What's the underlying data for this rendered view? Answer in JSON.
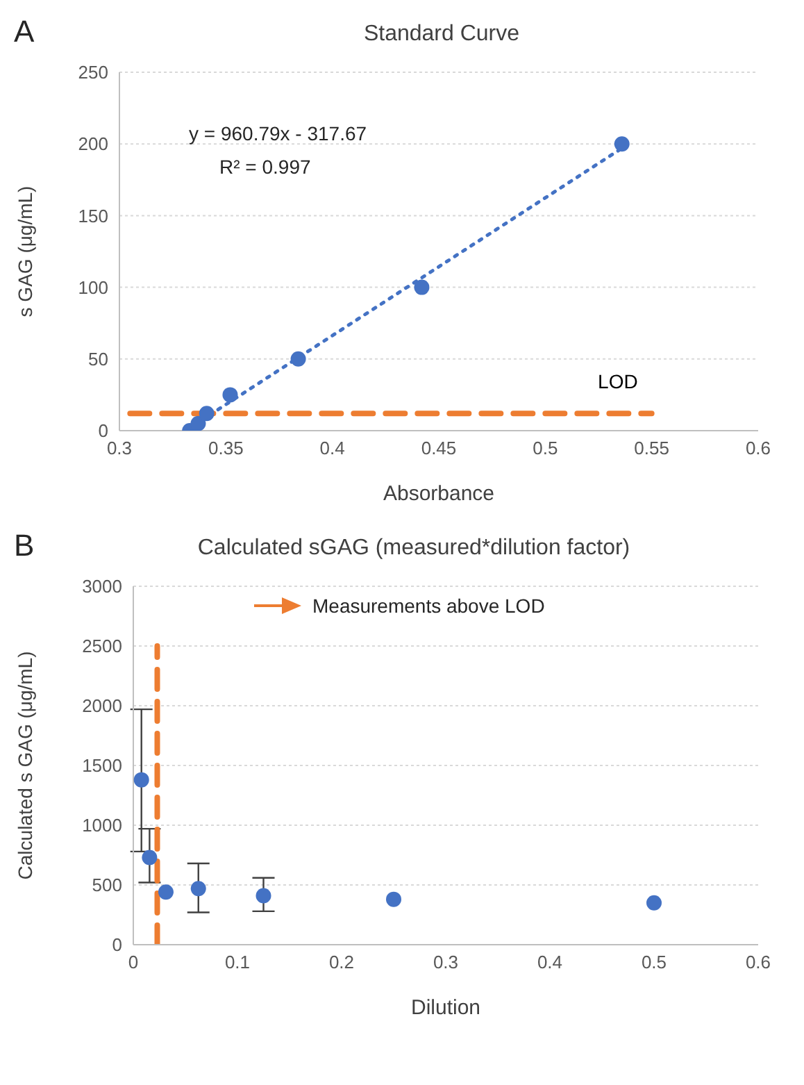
{
  "chart_data": [
    {
      "type": "scatter",
      "title": "Standard Curve",
      "xlabel": "Absorbance",
      "ylabel": "s GAG (μg/mL)",
      "annotations": [
        "A",
        "y = 960.79x - 317.67",
        "R² = 0.997"
      ],
      "xlim": [
        0.3,
        0.6
      ],
      "xticks": [
        0.3,
        0.35,
        0.4,
        0.45,
        0.5,
        0.55,
        0.6
      ],
      "ylim": [
        0,
        250
      ],
      "yticks": [
        0,
        50,
        100,
        150,
        200,
        250
      ],
      "grid": "y",
      "series": [
        {
          "color": "#4472c4",
          "marker": "circle",
          "x": [
            0.333,
            0.337,
            0.341,
            0.352,
            0.384,
            0.442,
            0.536
          ],
          "values": [
            0,
            5,
            12,
            25,
            50,
            100,
            200
          ]
        },
        {
          "type": "line",
          "color": "#4472c4",
          "marker": "none",
          "line_style": "dotted",
          "x": [
            0.331,
            0.536
          ],
          "values": [
            0,
            197
          ]
        },
        {
          "type": "line",
          "name": "LOD",
          "color": "#ed7d31",
          "marker": "none",
          "line_style": "dashed",
          "x": [
            0.305,
            0.55
          ],
          "values": [
            12,
            12
          ]
        }
      ]
    },
    {
      "type": "scatter",
      "title": "Calculated sGAG (measured*dilution factor)",
      "xlabel": "Dilution",
      "ylabel": "Calculated s GAG (μg/mL)",
      "annotations": [
        "B",
        "Measurements above LOD"
      ],
      "xlim": [
        0,
        0.6
      ],
      "xticks": [
        0,
        0.1,
        0.2,
        0.3,
        0.4,
        0.5,
        0.6
      ],
      "ylim": [
        0,
        3000
      ],
      "yticks": [
        0,
        500,
        1000,
        1500,
        2000,
        2500,
        3000
      ],
      "grid": "y",
      "series": [
        {
          "color": "#4472c4",
          "marker": "circle",
          "x": [
            0.0078,
            0.0156,
            0.0313,
            0.0625,
            0.125,
            0.25,
            0.5
          ],
          "values": [
            1380,
            730,
            440,
            470,
            410,
            380,
            350
          ],
          "errors": [
            [
              780,
              1970
            ],
            [
              520,
              970
            ],
            null,
            [
              270,
              680
            ],
            [
              280,
              560
            ],
            null,
            null
          ]
        },
        {
          "type": "line",
          "color": "#ed7d31",
          "marker": "none",
          "line_style": "dashed",
          "x": [
            0.023,
            0.023
          ],
          "values": [
            0,
            2500
          ]
        }
      ]
    }
  ]
}
